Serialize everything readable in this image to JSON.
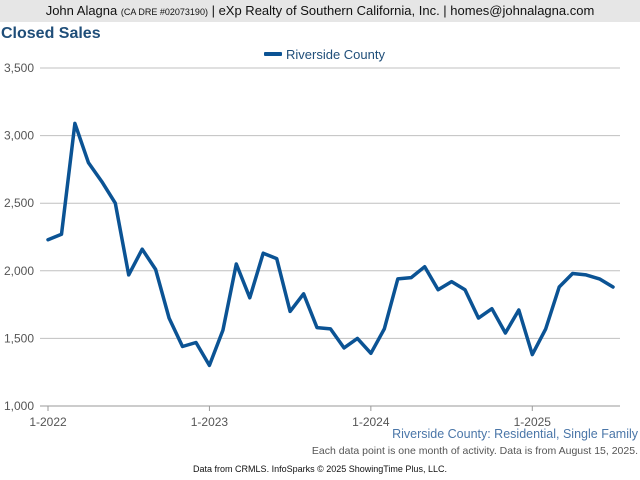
{
  "header": {
    "name": "John Alagna",
    "dre": "(CA DRE #02073190)",
    "rest": "| eXp Realty of Southern California, Inc. | homes@johnalagna.com"
  },
  "footer": {
    "subtitle": "Riverside County: Residential, Single Family",
    "note": "Each data point is one month of activity. Data is from August 15, 2025.",
    "source": "Data from CRMLS. InfoSparks © 2025 ShowingTime Plus, LLC."
  },
  "colors": {
    "series": "#0b5394",
    "title": "#1f4e79",
    "grid": "#c0c0c0"
  },
  "chart_data": {
    "type": "line",
    "title": "Closed Sales",
    "xlabel": "",
    "ylabel": "",
    "ylim": [
      1000,
      3500
    ],
    "yticks": [
      1000,
      1500,
      2000,
      2500,
      3000,
      3500
    ],
    "ytick_labels": [
      "1,000",
      "1,500",
      "2,000",
      "2,500",
      "3,000",
      "3,500"
    ],
    "xtick_labels": [
      "1-2022",
      "1-2023",
      "1-2024",
      "1-2025"
    ],
    "xtick_dates": [
      "2022-01",
      "2023-01",
      "2024-01",
      "2025-01"
    ],
    "grid": true,
    "legend_position": "top-center",
    "x": [
      "2022-01",
      "2022-02",
      "2022-03",
      "2022-04",
      "2022-05",
      "2022-06",
      "2022-07",
      "2022-08",
      "2022-09",
      "2022-10",
      "2022-11",
      "2022-12",
      "2023-01",
      "2023-02",
      "2023-03",
      "2023-04",
      "2023-05",
      "2023-06",
      "2023-07",
      "2023-08",
      "2023-09",
      "2023-10",
      "2023-11",
      "2023-12",
      "2024-01",
      "2024-02",
      "2024-03",
      "2024-04",
      "2024-05",
      "2024-06",
      "2024-07",
      "2024-08",
      "2024-09",
      "2024-10",
      "2024-11",
      "2024-12",
      "2025-01",
      "2025-02",
      "2025-03",
      "2025-04",
      "2025-05",
      "2025-06",
      "2025-07"
    ],
    "series": [
      {
        "name": "Riverside County",
        "values": [
          2230,
          2270,
          3090,
          2800,
          2660,
          2500,
          1970,
          2160,
          2010,
          1650,
          1440,
          1470,
          1300,
          1560,
          2050,
          1800,
          2130,
          2090,
          1700,
          1830,
          1580,
          1570,
          1430,
          1500,
          1390,
          1570,
          1940,
          1950,
          2030,
          1860,
          1920,
          1860,
          1650,
          1720,
          1540,
          1710,
          1380,
          1570,
          1880,
          1980,
          1970,
          1940,
          1880
        ]
      }
    ]
  }
}
